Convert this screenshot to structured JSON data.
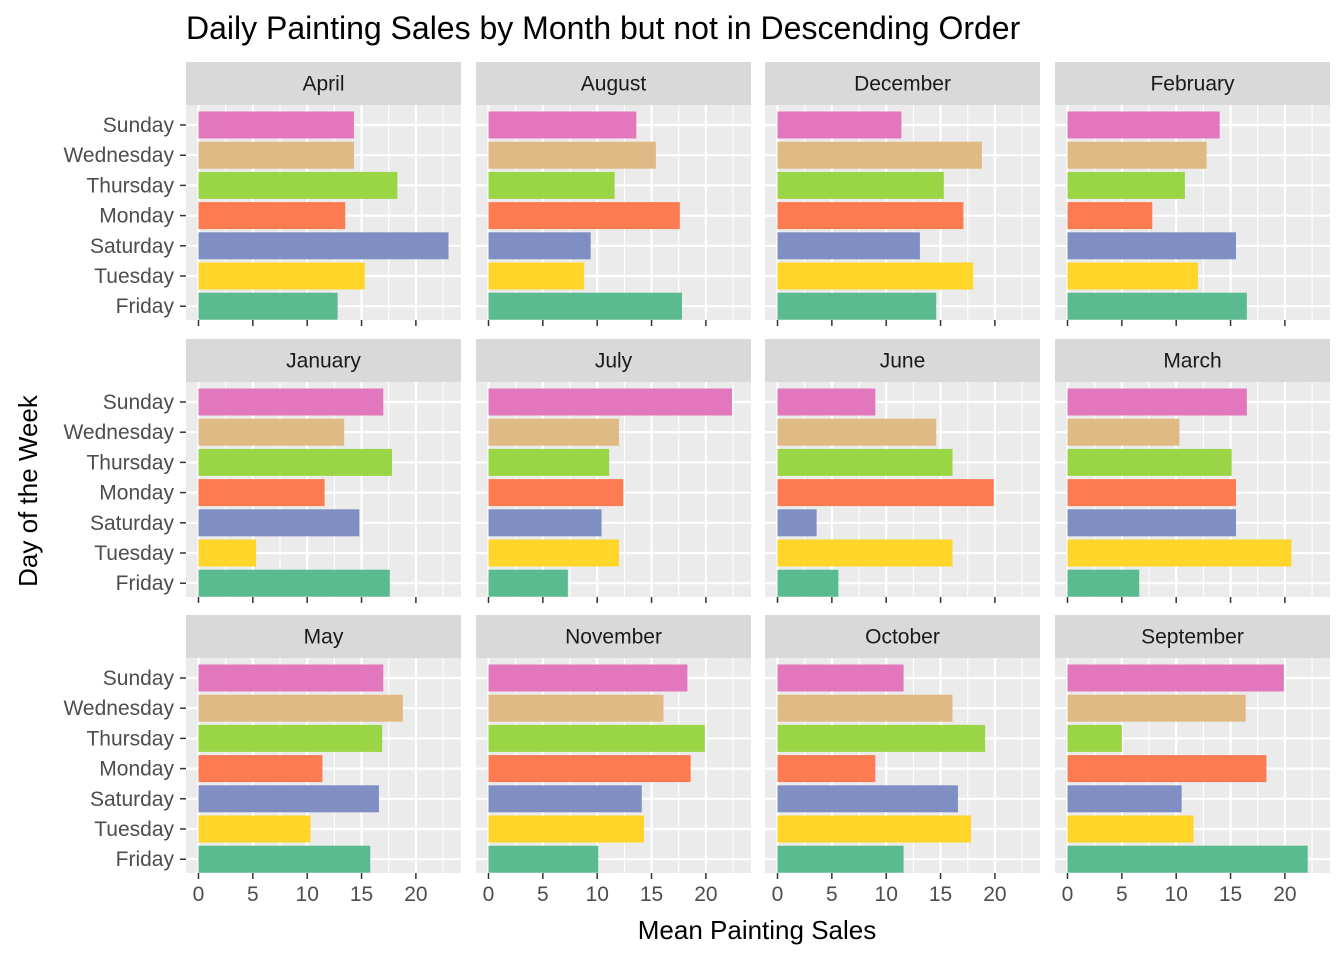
{
  "colors": {
    "panel_bg": "#EBEBEB",
    "strip_bg": "#D9D9D9",
    "grid": "#FFFFFF",
    "tick": "#333333",
    "days": {
      "Sunday": "#E377BE",
      "Wednesday": "#E0BA85",
      "Thursday": "#99D545",
      "Monday": "#FD7B50",
      "Saturday": "#7F8FC3",
      "Tuesday": "#FFD52A",
      "Friday": "#5ABB91"
    }
  },
  "chart_data": {
    "type": "bar",
    "orientation": "horizontal",
    "facet_layout": {
      "rows": 3,
      "cols": 4
    },
    "title": "Daily Painting Sales by Month but not in Descending Order",
    "xlabel": "Mean Painting Sales",
    "ylabel": "Day of the Week",
    "xlim": [
      -1.15,
      24.15
    ],
    "x_ticks": [
      0,
      5,
      10,
      15,
      20
    ],
    "x_tick_labels": [
      "0",
      "5",
      "10",
      "15",
      "20"
    ],
    "grid": true,
    "legend": "none",
    "categories": [
      "Sunday",
      "Wednesday",
      "Thursday",
      "Monday",
      "Saturday",
      "Tuesday",
      "Friday"
    ],
    "panels": [
      {
        "month": "April",
        "values": [
          14.3,
          14.3,
          18.3,
          13.5,
          23.0,
          15.3,
          12.8
        ]
      },
      {
        "month": "August",
        "values": [
          13.6,
          15.4,
          11.6,
          17.6,
          9.4,
          8.8,
          17.8
        ]
      },
      {
        "month": "December",
        "values": [
          11.4,
          18.8,
          15.3,
          17.1,
          13.1,
          18.0,
          14.6
        ]
      },
      {
        "month": "February",
        "values": [
          14.0,
          12.8,
          10.8,
          7.8,
          15.5,
          12.0,
          16.5
        ]
      },
      {
        "month": "January",
        "values": [
          17.0,
          13.4,
          17.8,
          11.6,
          14.8,
          5.3,
          17.6
        ]
      },
      {
        "month": "July",
        "values": [
          22.4,
          12.0,
          11.1,
          12.4,
          10.4,
          12.0,
          7.3
        ]
      },
      {
        "month": "June",
        "values": [
          9.0,
          14.6,
          16.1,
          19.9,
          3.6,
          16.1,
          5.6
        ]
      },
      {
        "month": "March",
        "values": [
          16.5,
          10.3,
          15.1,
          15.5,
          15.5,
          20.6,
          6.6
        ]
      },
      {
        "month": "May",
        "values": [
          17.0,
          18.8,
          16.9,
          11.4,
          16.6,
          10.3,
          15.8
        ]
      },
      {
        "month": "November",
        "values": [
          18.3,
          16.1,
          19.9,
          18.6,
          14.1,
          14.3,
          10.1
        ]
      },
      {
        "month": "October",
        "values": [
          11.6,
          16.1,
          19.1,
          9.0,
          16.6,
          17.8,
          11.6
        ]
      },
      {
        "month": "September",
        "values": [
          19.9,
          16.4,
          5.0,
          18.3,
          10.5,
          11.6,
          22.1
        ]
      }
    ]
  }
}
